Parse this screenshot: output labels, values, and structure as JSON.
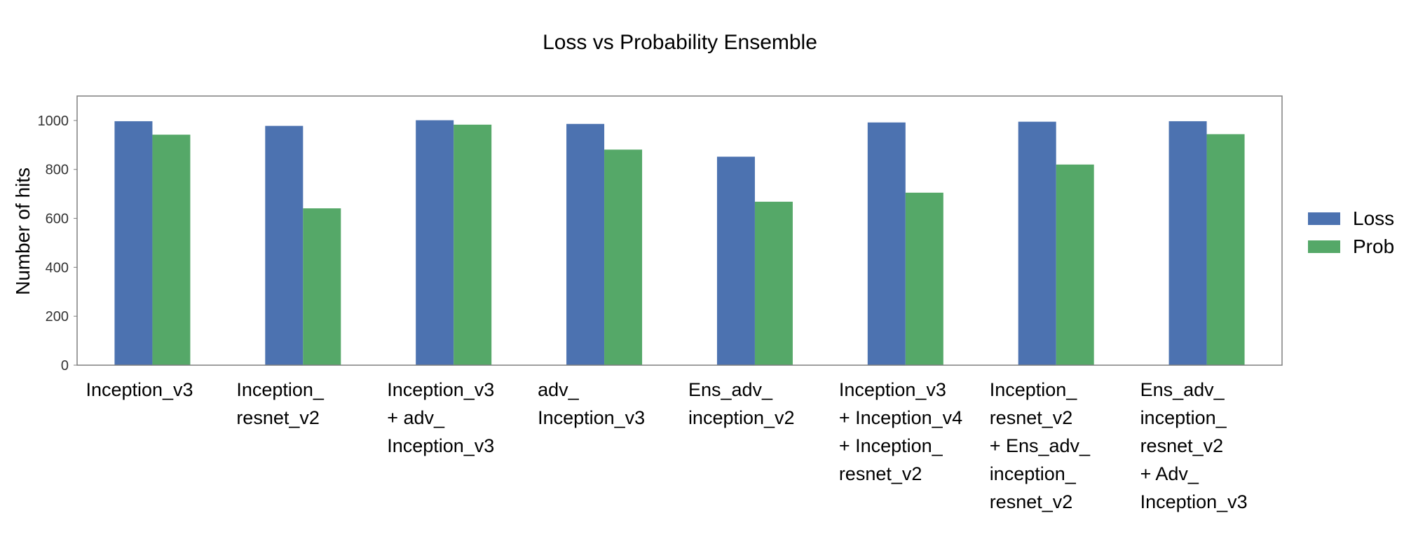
{
  "chart_data": {
    "type": "bar",
    "title": "Loss vs Probability Ensemble",
    "xlabel": "",
    "ylabel": "Number of hits",
    "ylim": [
      0,
      1100
    ],
    "yticks": [
      0,
      200,
      400,
      600,
      800,
      1000
    ],
    "grid": false,
    "legend_position": "right",
    "categories": [
      [
        "Inception_v3"
      ],
      [
        "Inception_",
        "resnet_v2"
      ],
      [
        "Inception_v3",
        "+ adv_",
        "Inception_v3"
      ],
      [
        "adv_",
        "Inception_v3"
      ],
      [
        "Ens_adv_",
        "inception_v2"
      ],
      [
        "Inception_v3",
        "+ Inception_v4",
        "+ Inception_",
        "resnet_v2"
      ],
      [
        "Inception_",
        "resnet_v2",
        "+ Ens_adv_",
        "inception_",
        "resnet_v2"
      ],
      [
        "Ens_adv_",
        "inception_",
        "resnet_v2",
        "+ Adv_",
        "Inception_v3"
      ]
    ],
    "series": [
      {
        "name": "Loss",
        "color": "#4c72b0",
        "values": [
          997,
          978,
          1001,
          986,
          852,
          992,
          995,
          997
        ]
      },
      {
        "name": "Prob",
        "color": "#55a868",
        "values": [
          942,
          641,
          983,
          881,
          668,
          705,
          820,
          944
        ]
      }
    ]
  }
}
